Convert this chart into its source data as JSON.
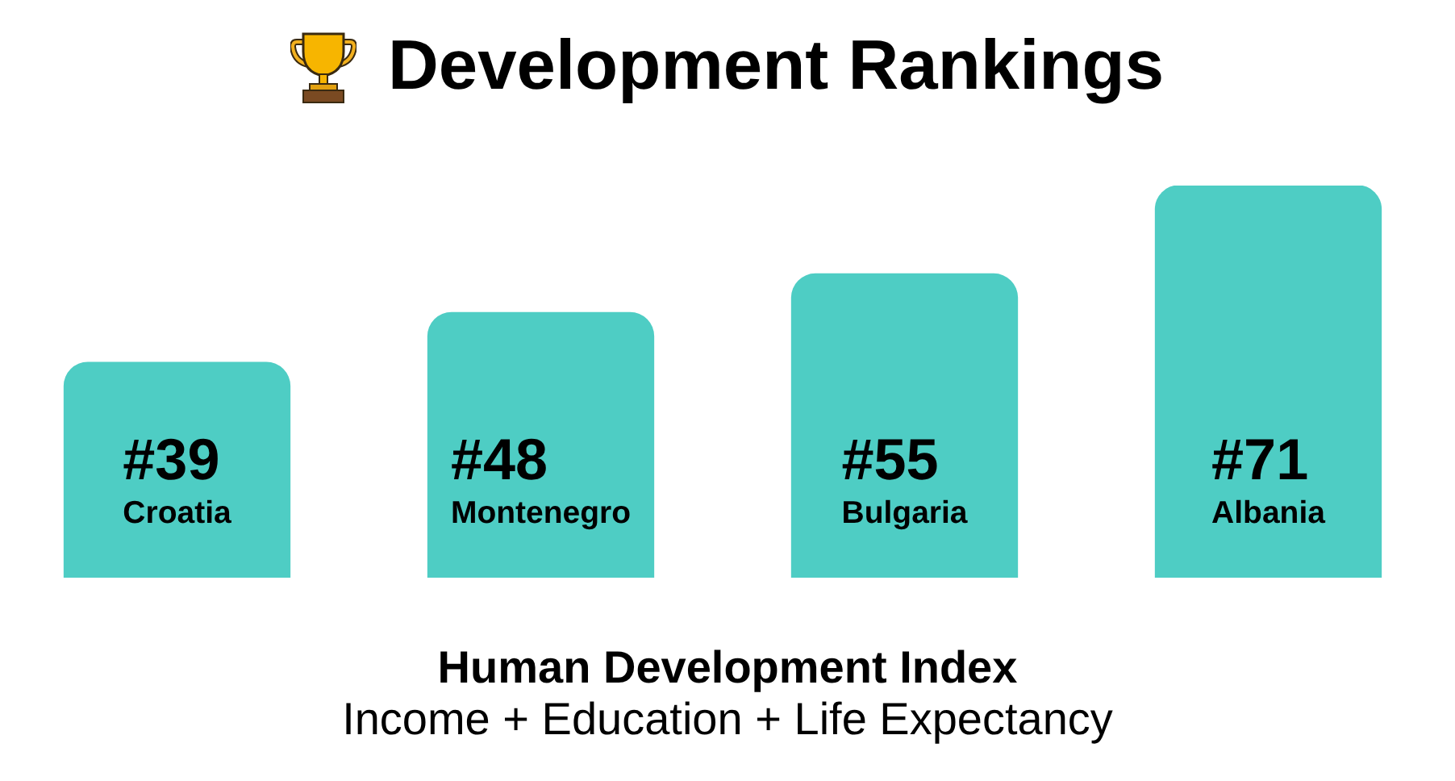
{
  "chart_data": {
    "type": "bar",
    "title": "Development Rankings",
    "categories": [
      "Croatia",
      "Montenegro",
      "Bulgaria",
      "Albania"
    ],
    "values": [
      39,
      48,
      55,
      71
    ],
    "value_labels": [
      "#39",
      "#48",
      "#55",
      "#71"
    ],
    "color": "#4ecdc4",
    "tick_labels": false,
    "xlabel": "Human Development Index",
    "annotations": [
      "Income + Education + Life Expectancy"
    ]
  }
}
